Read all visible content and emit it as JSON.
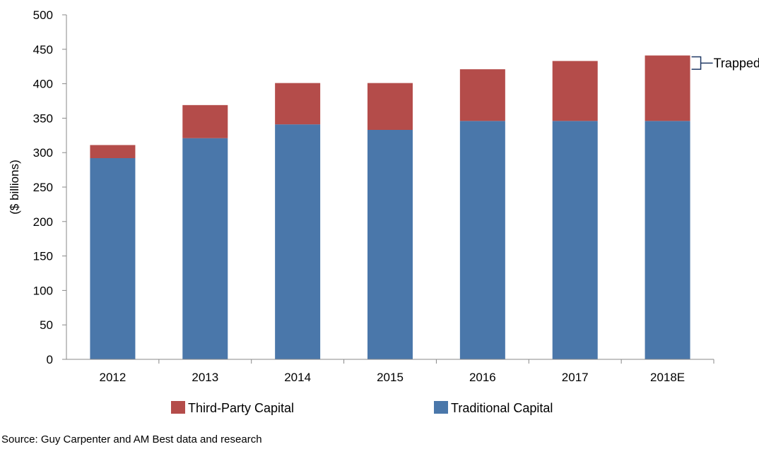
{
  "chart_data": {
    "type": "bar",
    "stacked": true,
    "categories": [
      "2012",
      "2013",
      "2014",
      "2015",
      "2016",
      "2017",
      "2018E"
    ],
    "series": [
      {
        "name": "Traditional Capital",
        "color": "#4a77aa",
        "values": [
          292,
          321,
          341,
          333,
          346,
          346,
          346
        ]
      },
      {
        "name": "Third-Party Capital",
        "color": "#b44c4a",
        "values": [
          19,
          48,
          60,
          68,
          75,
          87,
          95
        ]
      }
    ],
    "ylabel": "($ billions)",
    "xlabel": "",
    "ylim": [
      0,
      500
    ],
    "yticks": [
      "0",
      "50",
      "100",
      "150",
      "200",
      "250",
      "300",
      "350",
      "400",
      "450",
      "500"
    ],
    "grid": false,
    "legend_position": "bottom",
    "legend": [
      "Third-Party Capital",
      "Traditional Capital"
    ],
    "annotation": {
      "text": "Trapped",
      "category": "2018E",
      "bracket_range": [
        420,
        440
      ]
    }
  },
  "source_note": "Source: Guy Carpenter and AM Best data and research"
}
